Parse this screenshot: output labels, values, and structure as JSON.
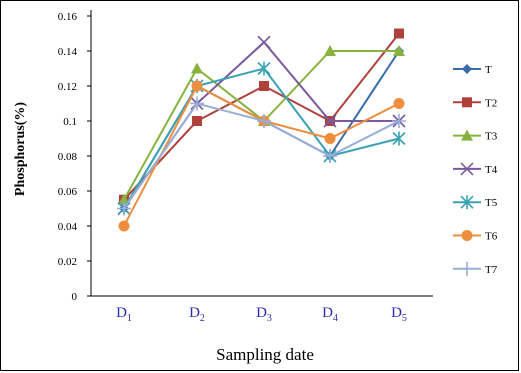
{
  "chart_data": {
    "type": "line",
    "title": "",
    "xlabel": "Sampling date",
    "ylabel": "Phosphorus(%)",
    "ylim": [
      0,
      0.16
    ],
    "yticks": [
      "0",
      "0.02",
      "0.04",
      "0.06",
      "0.08",
      "0.1",
      "0.12",
      "0.14",
      "0.16"
    ],
    "categories": [
      {
        "base": "D",
        "sub": "1"
      },
      {
        "base": "D",
        "sub": "2"
      },
      {
        "base": "D",
        "sub": "3"
      },
      {
        "base": "D",
        "sub": "4"
      },
      {
        "base": "D",
        "sub": "5"
      }
    ],
    "grid": false,
    "legend_position": "right",
    "series": [
      {
        "name": "T1",
        "legend_text": "T",
        "color": "#3a6ca8",
        "marker": "diamond",
        "values": [
          0.05,
          0.12,
          0.1,
          0.08,
          0.14
        ]
      },
      {
        "name": "T2",
        "legend_text": "T2",
        "color": "#b0403c",
        "marker": "square",
        "values": [
          0.055,
          0.1,
          0.12,
          0.1,
          0.15
        ]
      },
      {
        "name": "T3",
        "legend_text": "T3",
        "color": "#88b23e",
        "marker": "triangle",
        "values": [
          0.055,
          0.13,
          0.1,
          0.14,
          0.14
        ]
      },
      {
        "name": "T4",
        "legend_text": "T4",
        "color": "#7a5a9e",
        "marker": "x",
        "values": [
          0.05,
          0.11,
          0.145,
          0.1,
          0.1
        ]
      },
      {
        "name": "T5",
        "legend_text": "T5",
        "color": "#3aa2b4",
        "marker": "asterisk",
        "values": [
          0.05,
          0.12,
          0.13,
          0.08,
          0.09
        ]
      },
      {
        "name": "T6",
        "legend_text": "T6",
        "color": "#ee8e3c",
        "marker": "circle",
        "values": [
          0.04,
          0.12,
          0.1,
          0.09,
          0.11
        ]
      },
      {
        "name": "T7",
        "legend_text": "T7",
        "color": "#98aed6",
        "marker": "plus",
        "values": [
          0.05,
          0.11,
          0.1,
          0.08,
          0.1
        ]
      }
    ]
  }
}
